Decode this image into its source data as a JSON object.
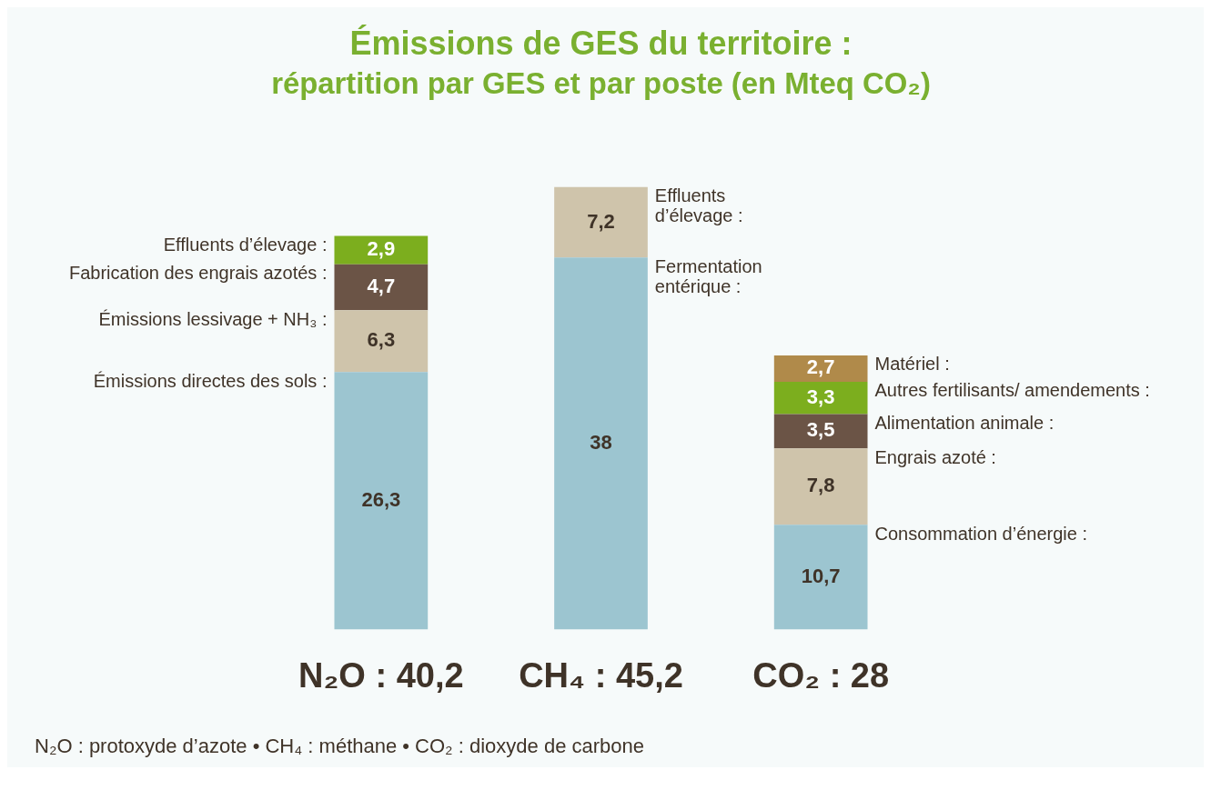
{
  "chart_data": {
    "type": "bar",
    "title": "Émissions de GES du territoire :",
    "subtitle": "répartition par GES et par poste (en Mteq CO₂)",
    "categories": [
      "N₂O : 40,2",
      "CH₄ : 45,2",
      "CO₂ : 28"
    ],
    "stacked": true,
    "tick_labels": "x",
    "grid": false,
    "legend": false,
    "series": [
      {
        "color": "#9cc5d0",
        "values": [
          26.3,
          38,
          10.7
        ],
        "value_labels": [
          "26,3",
          "38",
          "10,7"
        ]
      },
      {
        "color": "#cfc4ab",
        "values": [
          6.3,
          7.2,
          7.8
        ],
        "value_labels": [
          "6,3",
          "7,2",
          "7,8"
        ]
      },
      {
        "color": "#6b5446",
        "values": [
          4.7,
          null,
          3.5
        ],
        "value_labels": [
          "4,7",
          null,
          "3,5"
        ]
      },
      {
        "color": "#7cae1e",
        "values": [
          2.9,
          null,
          3.3
        ],
        "value_labels": [
          "2,9",
          null,
          "3,3"
        ]
      },
      {
        "color": "#b08a4a",
        "values": [
          null,
          null,
          2.7
        ],
        "value_labels": [
          null,
          null,
          "2,7"
        ]
      }
    ],
    "annotations": [
      {
        "text": "Émissions directes des sols :",
        "x": "N₂O : 40,2",
        "y": 26.3
      },
      {
        "text": "Émissions lessivage + NH₃ :",
        "x": "N₂O : 40,2",
        "y": 32.6
      },
      {
        "text": "Fabrication des engrais azotés :",
        "x": "N₂O : 40,2",
        "y": 37.3
      },
      {
        "text": "Effluents d’élevage :",
        "x": "N₂O : 40,2",
        "y": 40.2
      },
      {
        "text": "Fermentation entérique :",
        "x": "CH₄ : 45,2",
        "y": 38
      },
      {
        "text": "Effluents d’élevage :",
        "x": "CH₄ : 45,2",
        "y": 45.2
      },
      {
        "text": "Consommation d’énergie :",
        "x": "CO₂ : 28",
        "y": 10.7
      },
      {
        "text": "Engrais azoté :",
        "x": "CO₂ : 28",
        "y": 18.5
      },
      {
        "text": "Alimentation animale :",
        "x": "CO₂ : 28",
        "y": 22
      },
      {
        "text": "Autres fertilisants/ amendements :",
        "x": "CO₂ : 28",
        "y": 25.3
      },
      {
        "text": "Matériel :",
        "x": "CO₂ : 28",
        "y": 28
      },
      "N₂O : protoxyde d’azote • CH₄ : méthane • CO₂ : dioxyde de carbone"
    ]
  }
}
